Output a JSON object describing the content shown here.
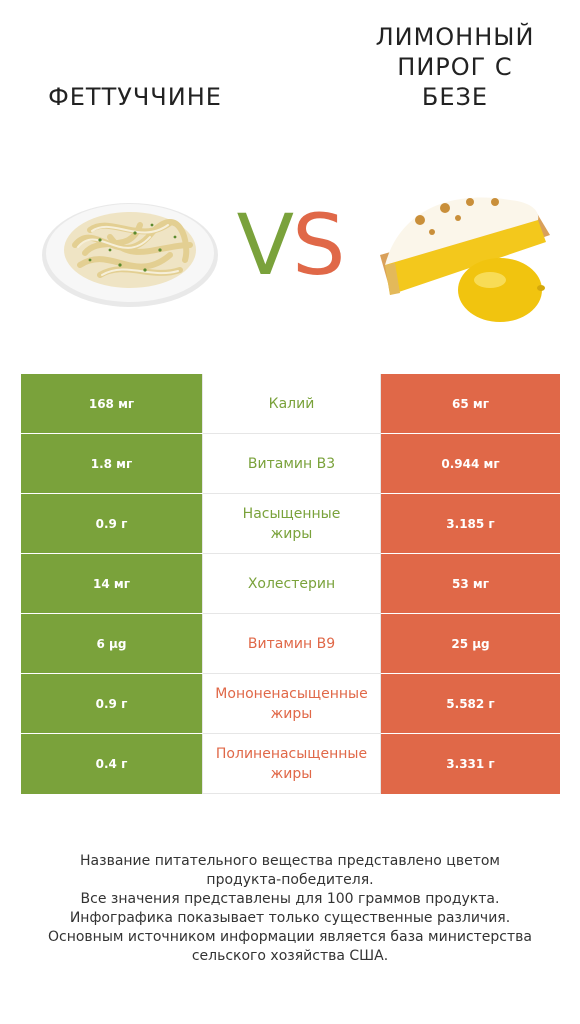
{
  "left_food": {
    "title": "ФЕТТУЧЧИНЕ",
    "image_icon": "fettuccine-plate-image"
  },
  "right_food": {
    "title_lines": [
      "ЛИМОННЫЙ",
      "ПИРОГ С",
      "БЕЗЕ"
    ],
    "image_icon": "lemon-meringue-pie-image"
  },
  "vs": {
    "v": "V",
    "s": "S"
  },
  "colors": {
    "left": "#7aa23b",
    "right": "#e06848"
  },
  "rows": [
    {
      "left": "168 мг",
      "name": "Калий",
      "name_lines": [
        "Калий"
      ],
      "winner": "left",
      "right": "65 мг"
    },
    {
      "left": "1.8 мг",
      "name": "Витамин B3",
      "name_lines": [
        "Витамин B3"
      ],
      "winner": "left",
      "right": "0.944 мг"
    },
    {
      "left": "0.9 г",
      "name": "Насыщенные жиры",
      "name_lines": [
        "Насыщенные",
        "жиры"
      ],
      "winner": "left",
      "right": "3.185 г"
    },
    {
      "left": "14 мг",
      "name": "Холестерин",
      "name_lines": [
        "Холестерин"
      ],
      "winner": "left",
      "right": "53 мг"
    },
    {
      "left": "6 µg",
      "name": "Витамин B9",
      "name_lines": [
        "Витамин B9"
      ],
      "winner": "right",
      "right": "25 µg"
    },
    {
      "left": "0.9 г",
      "name": "Мононенасыщенные жиры",
      "name_lines": [
        "Мононенасыщенные",
        "жиры"
      ],
      "winner": "right",
      "right": "5.582 г"
    },
    {
      "left": "0.4 г",
      "name": "Полиненасыщенные жиры",
      "name_lines": [
        "Полиненасыщенные",
        "жиры"
      ],
      "winner": "right",
      "right": "3.331 г"
    }
  ],
  "footer": {
    "lines": [
      "Название питательного вещества представлено цветом",
      "продукта-победителя.",
      "Все значения представлены для 100 граммов продукта.",
      "Инфографика показывает только существенные различия.",
      "Основным источником информации является база министерства",
      "сельского хозяйства США."
    ]
  }
}
